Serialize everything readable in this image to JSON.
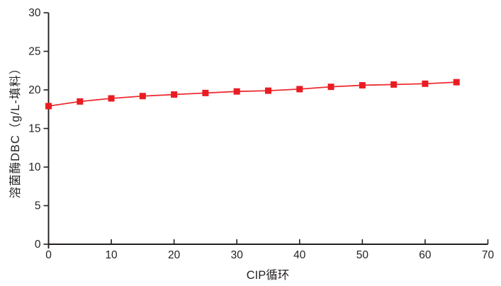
{
  "chart_data": {
    "type": "line",
    "title": "",
    "xlabel": "CIP循环",
    "ylabel": "溶菌酶DBC（g/L-填料）",
    "x": [
      0,
      5,
      10,
      15,
      20,
      25,
      30,
      35,
      40,
      45,
      50,
      55,
      60,
      65
    ],
    "series": [
      {
        "name": "溶菌酶DBC",
        "values": [
          17.9,
          18.5,
          18.9,
          19.2,
          19.4,
          19.6,
          19.8,
          19.9,
          20.1,
          20.4,
          20.6,
          20.7,
          20.8,
          21.0
        ]
      }
    ],
    "xlim": [
      0,
      70
    ],
    "ylim": [
      0,
      30
    ],
    "xticks": [
      0,
      10,
      20,
      30,
      40,
      50,
      60,
      70
    ],
    "yticks": [
      0,
      5,
      10,
      15,
      20,
      25,
      30
    ],
    "grid": false,
    "legend_position": "none",
    "line_color": "#ee2c31",
    "marker_color": "#e91c22",
    "marker_shape": "square",
    "axis_color": "#231f20",
    "background_color": "#ffffff"
  }
}
